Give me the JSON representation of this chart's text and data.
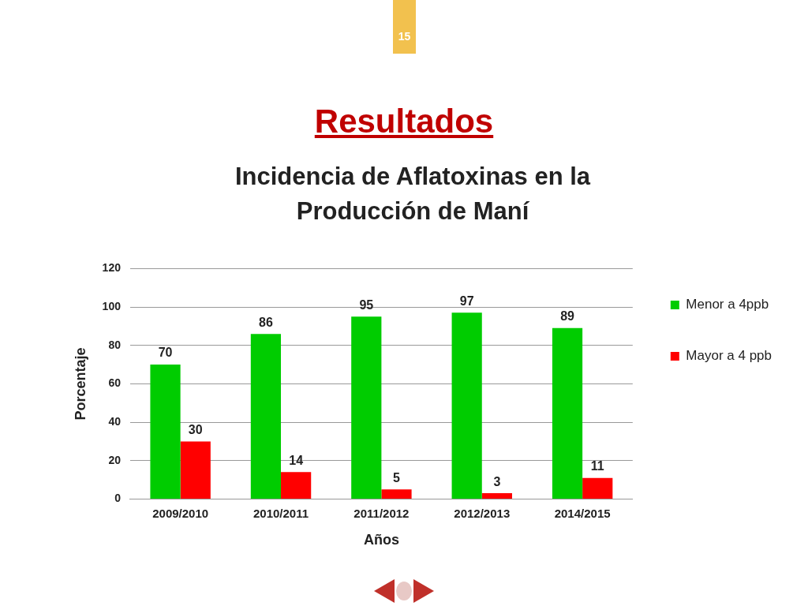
{
  "chart_data": {
    "type": "bar",
    "title": "Resultados",
    "subtitle": "Incidencia de Aflatoxinas en la Producción de Maní",
    "xlabel": "Años",
    "ylabel": "Porcentaje",
    "annotations": [
      "15"
    ],
    "categories": [
      "2009/2010",
      "2010/2011",
      "2011/2012",
      "2012/2013",
      "2014/2015"
    ],
    "series": [
      {
        "name": "Menor a 4ppb",
        "color": "#00cc00",
        "values": [
          70,
          86,
          95,
          97,
          89
        ]
      },
      {
        "name": "Mayor a 4 ppb",
        "color": "#ff0000",
        "values": [
          30,
          14,
          5,
          3,
          11
        ]
      }
    ],
    "ylim": [
      0,
      120
    ],
    "yticks": [
      0,
      20,
      40,
      60,
      80,
      100,
      120
    ],
    "grid": "y",
    "legend": "right",
    "data_labels": true
  }
}
